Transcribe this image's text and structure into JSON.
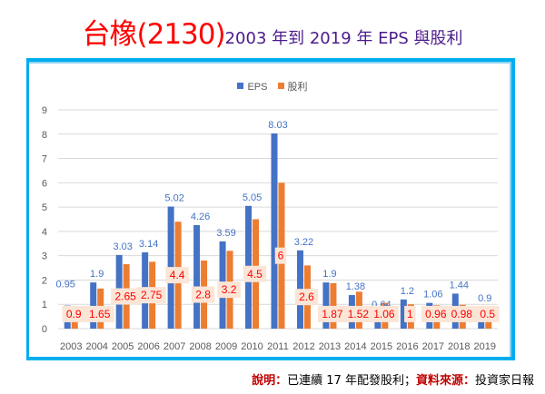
{
  "header": {
    "title_main": "台橡(2130)",
    "title_sub": "2003 年到 2019 年 EPS 與股利"
  },
  "footer": {
    "note_label": "說明：",
    "note_text": "已連續 17 年配發股利；",
    "source_label": "資料來源：",
    "source_text": "投資家日報"
  },
  "colors": {
    "eps": "#4472c4",
    "dividend": "#ed7d31",
    "eps_label": "#4472c4",
    "dividend_label": "#ff0000",
    "dividend_label_bg": "#fbe5d6",
    "frame": "#00aeef",
    "title_main": "#ff0000",
    "title_sub": "#4b1b8c"
  },
  "chart_data": {
    "type": "bar",
    "title": "",
    "xlabel": "",
    "ylabel": "",
    "ylim": [
      0,
      9
    ],
    "yticks": [
      "0",
      "1",
      "2",
      "3",
      "4",
      "5",
      "6",
      "7",
      "8",
      "9"
    ],
    "grid": true,
    "legend_position": "top",
    "categories": [
      "2003",
      "2004",
      "2005",
      "2006",
      "2007",
      "2008",
      "2009",
      "2010",
      "2011",
      "2012",
      "2013",
      "2014",
      "2015",
      "2016",
      "2017",
      "2018",
      "2019"
    ],
    "series": [
      {
        "name": "EPS",
        "values": [
          0.95,
          1.9,
          3.03,
          3.14,
          5.02,
          4.26,
          3.59,
          5.05,
          8.03,
          3.22,
          1.9,
          1.38,
          0.64,
          1.2,
          1.06,
          1.44,
          0.9
        ],
        "labels": [
          "0.95",
          "1.9",
          "3.03",
          "3.14",
          "5.02",
          "4.26",
          "3.59",
          "5.05",
          "8.03",
          "3.22",
          "1.9",
          "1.38",
          "0.64",
          "1.2",
          "1.06",
          "1.44",
          "0.9"
        ]
      },
      {
        "name": "股利",
        "values": [
          0.9,
          1.65,
          2.65,
          2.75,
          4.4,
          2.8,
          3.2,
          4.5,
          6,
          2.6,
          1.87,
          1.52,
          1.06,
          1,
          0.96,
          0.98,
          0.5
        ],
        "labels": [
          "0.9",
          "1.65",
          "2.65",
          "2.75",
          "4.4",
          "2.8",
          "3.2",
          "4.5",
          "6",
          "2.6",
          "1.87",
          "1.52",
          "1.06",
          "1",
          "0.96",
          "0.98",
          "0.5"
        ]
      }
    ]
  }
}
